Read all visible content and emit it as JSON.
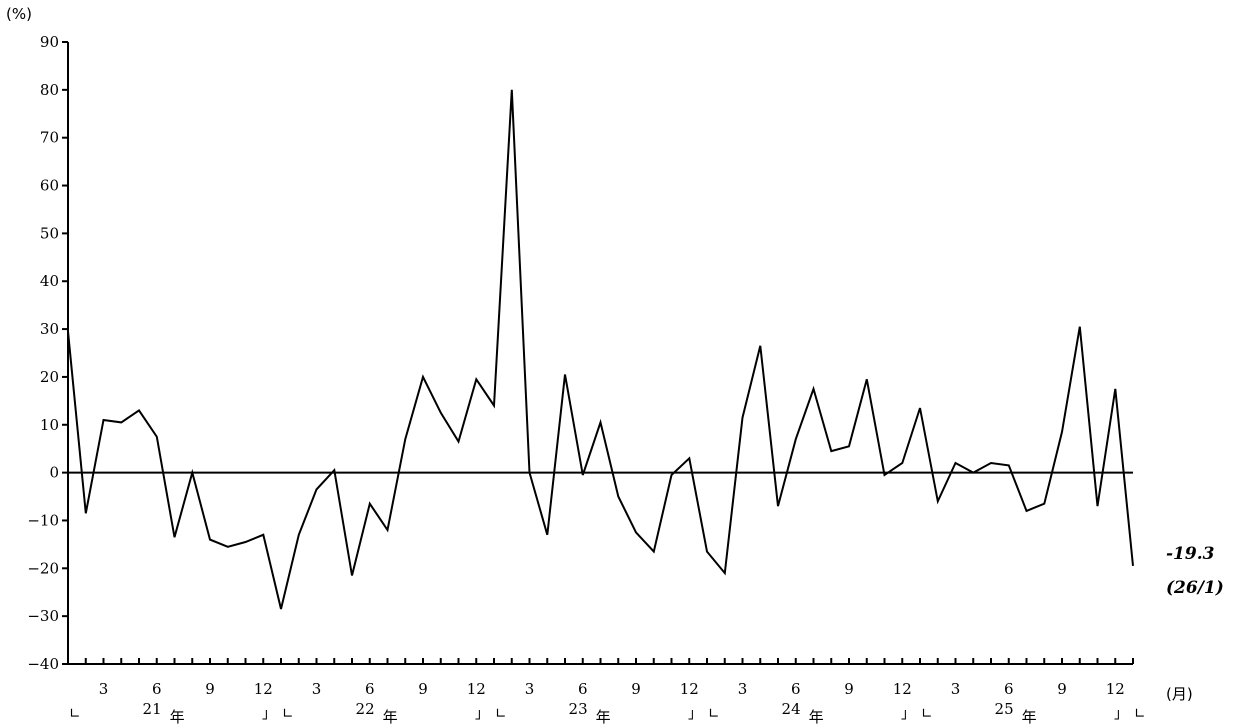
{
  "chart_data": {
    "type": "line",
    "y_unit": "(%)",
    "x_unit": "(月)",
    "ylim": [
      -40,
      90
    ],
    "y_ticks": [
      -40,
      -30,
      -20,
      -10,
      0,
      10,
      20,
      30,
      40,
      50,
      60,
      70,
      80,
      90
    ],
    "grid": false,
    "month_tick_labels": [
      "3",
      "6",
      "9",
      "12"
    ],
    "year_labels": [
      {
        "num": "21",
        "char": "年"
      },
      {
        "num": "22",
        "char": "年"
      },
      {
        "num": "23",
        "char": "年"
      },
      {
        "num": "24",
        "char": "年"
      },
      {
        "num": "25",
        "char": "年"
      }
    ],
    "bracket_open": "∟",
    "bracket_close": "」",
    "series": [
      {
        "values": [
          29.5,
          -8.5,
          11.0,
          10.5,
          13.0,
          7.5,
          -13.5,
          0.0,
          -14.0,
          -15.5,
          -14.5,
          -13.0,
          -28.5,
          -13.0,
          -3.5,
          0.5,
          -21.5,
          -6.5,
          -12.0,
          7.0,
          20.0,
          12.5,
          6.5,
          19.5,
          14.0,
          80.0,
          0.0,
          -13.0,
          20.5,
          -0.5,
          10.5,
          -5.0,
          -12.5,
          -16.5,
          -0.5,
          3.0,
          -16.5,
          -21.0,
          11.5,
          26.5,
          -7.0,
          7.0,
          17.5,
          4.5,
          5.5,
          19.5,
          -0.5,
          2.0,
          13.5,
          -6.0,
          2.0,
          0.0,
          2.0,
          1.5,
          -8.0,
          -6.5,
          8.5,
          30.5,
          -7.0,
          17.5,
          -19.5
        ]
      }
    ],
    "last_value_label": "-19.3",
    "last_period_label": "(26/1)"
  }
}
